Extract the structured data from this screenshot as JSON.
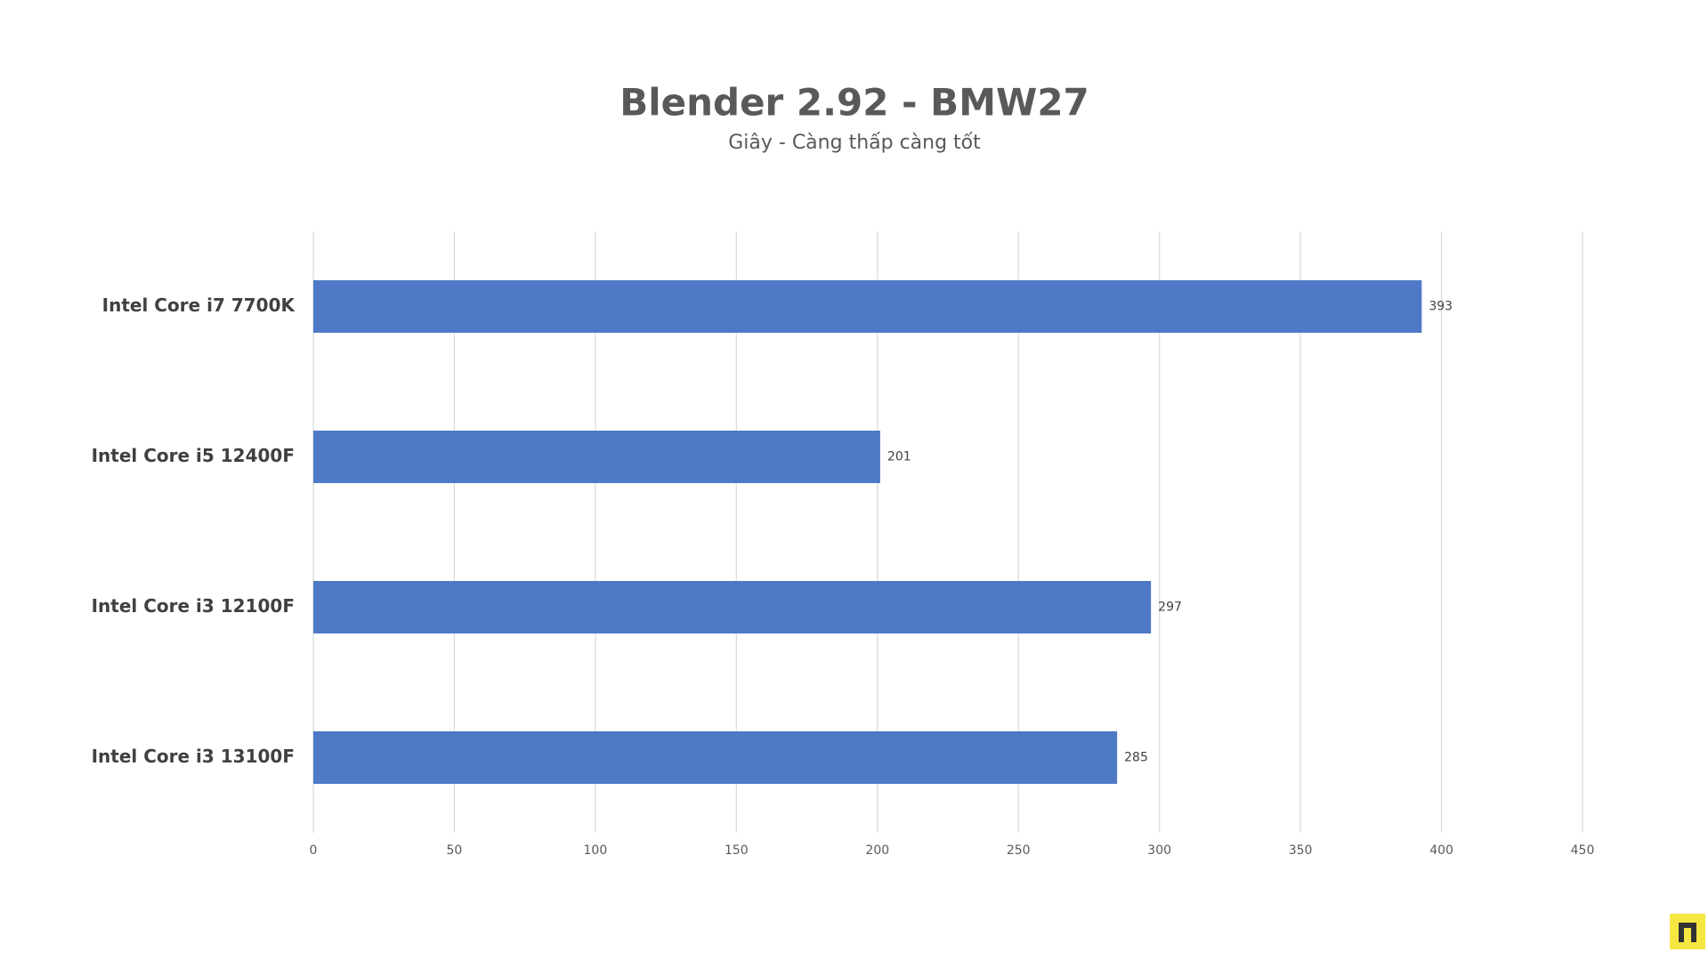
{
  "chart_data": {
    "type": "bar",
    "orientation": "horizontal",
    "title": "Blender 2.92 - BMW27",
    "subtitle": "Giây - Càng thấp càng tốt",
    "categories": [
      "Intel Core i7 7700K",
      "Intel Core i5 12400F",
      "Intel Core i3 12100F",
      "Intel Core i3 13100F"
    ],
    "values": [
      393,
      201,
      297,
      285
    ],
    "color": "#4e79c6",
    "xlim": [
      0,
      450
    ],
    "xticks": [
      0,
      50,
      100,
      150,
      200,
      250,
      300,
      350,
      400,
      450
    ],
    "grid": true
  }
}
